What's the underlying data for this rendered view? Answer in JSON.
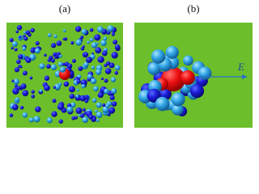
{
  "panels": [
    {
      "label": "(a)"
    },
    {
      "label": "(b)",
      "field_label": "E"
    }
  ]
}
